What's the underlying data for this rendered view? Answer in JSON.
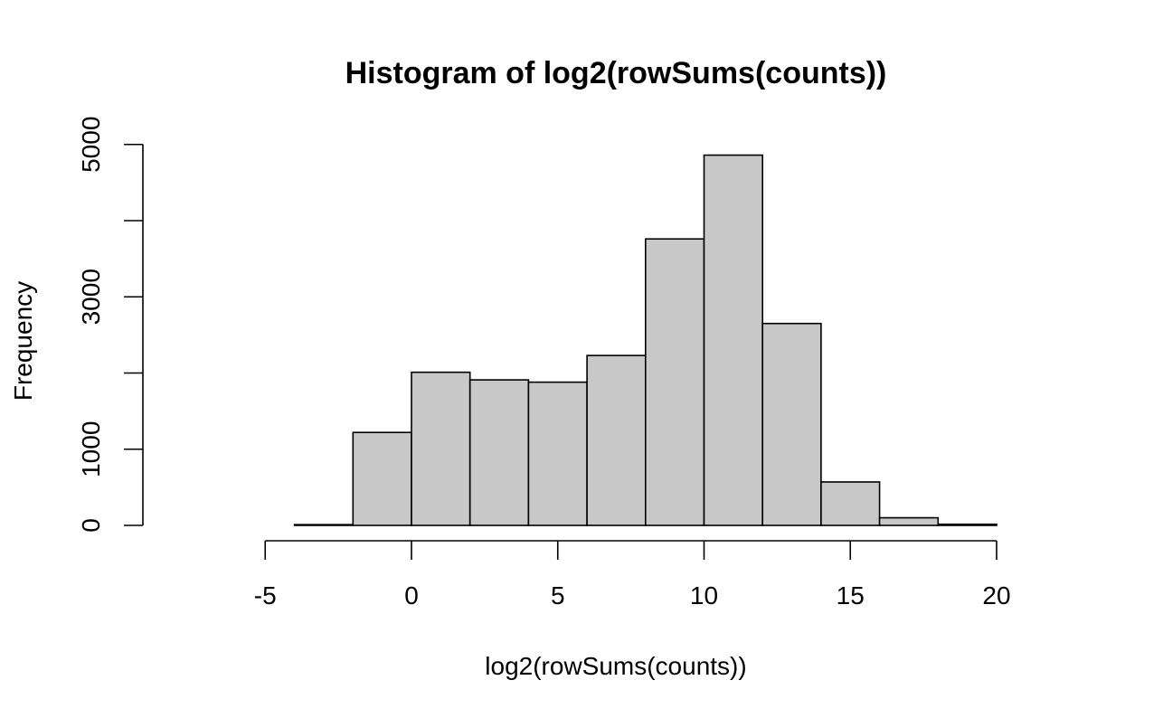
{
  "chart_data": {
    "type": "bar",
    "title": "Histogram of log2(rowSums(counts))",
    "xlabel": "log2(rowSums(counts))",
    "ylabel": "Frequency",
    "bins": [
      {
        "x0": -8,
        "x1": -6,
        "count": 0
      },
      {
        "x0": -6,
        "x1": -4,
        "count": 0
      },
      {
        "x0": -4,
        "x1": -2,
        "count": 10
      },
      {
        "x0": -2,
        "x1": 0,
        "count": 1220
      },
      {
        "x0": 0,
        "x1": 2,
        "count": 2010
      },
      {
        "x0": 2,
        "x1": 4,
        "count": 1910
      },
      {
        "x0": 4,
        "x1": 6,
        "count": 1880
      },
      {
        "x0": 6,
        "x1": 8,
        "count": 2230
      },
      {
        "x0": 8,
        "x1": 10,
        "count": 3760
      },
      {
        "x0": 10,
        "x1": 12,
        "count": 4860
      },
      {
        "x0": 12,
        "x1": 14,
        "count": 2650
      },
      {
        "x0": 14,
        "x1": 16,
        "count": 570
      },
      {
        "x0": 16,
        "x1": 18,
        "count": 100
      },
      {
        "x0": 18,
        "x1": 20,
        "count": 15
      },
      {
        "x0": 20,
        "x1": 22,
        "count": 0
      }
    ],
    "xlim": [
      -8,
      22
    ],
    "ylim": [
      0,
      5000
    ],
    "x_ticks": [
      -5,
      0,
      5,
      10,
      15,
      20
    ],
    "y_ticks": [
      0,
      1000,
      2000,
      3000,
      4000,
      5000
    ],
    "y_tick_labels": [
      "0",
      "1000",
      "",
      "3000",
      "",
      "5000"
    ],
    "x_tick_labels": [
      "-5",
      "0",
      "5",
      "10",
      "15",
      "20"
    ],
    "bar_color": "#c8c8c8",
    "edge_color": "#000000",
    "grid": false,
    "legend": "none"
  }
}
